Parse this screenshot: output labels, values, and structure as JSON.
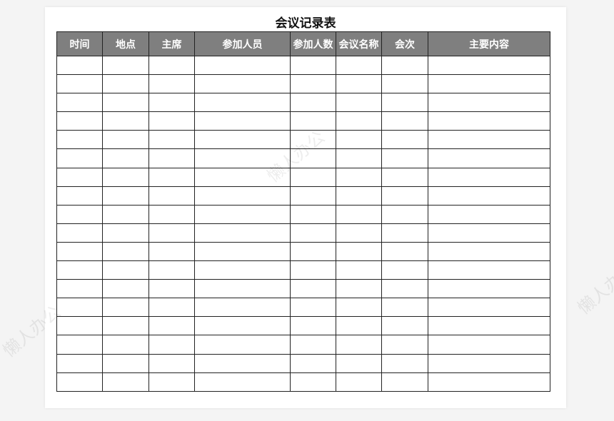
{
  "title": "会议记录表",
  "columns": [
    "时间",
    "地点",
    "主席",
    "参加人员",
    "参加人数",
    "会议名称",
    "会次",
    "主要内容"
  ],
  "row_count": 18,
  "watermark": "懒人办公",
  "colors": {
    "header_bg": "#7f7f7f",
    "header_text": "#ffffff",
    "border": "#222222"
  }
}
